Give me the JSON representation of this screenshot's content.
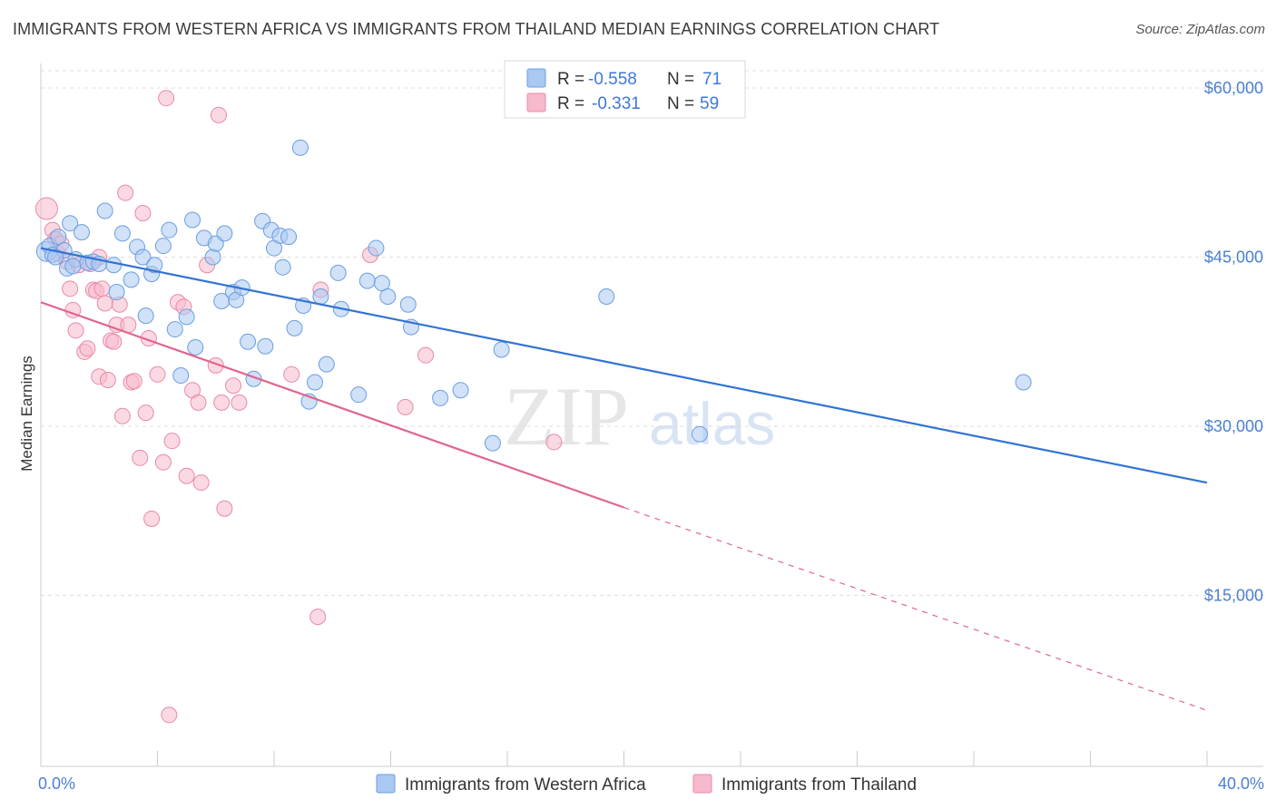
{
  "title": "IMMIGRANTS FROM WESTERN AFRICA VS IMMIGRANTS FROM THAILAND MEDIAN EARNINGS CORRELATION CHART",
  "source": "Source: ZipAtlas.com",
  "watermark": {
    "zip": "ZIP",
    "atlas": "atlas"
  },
  "legend": {
    "rows": [
      {
        "r_label": "R =",
        "r_value": "-0.558",
        "n_label": "N =",
        "n_value": "71",
        "color": "#a9c8f2"
      },
      {
        "r_label": "R =",
        "r_value": "-0.331",
        "n_label": "N =",
        "n_value": "59",
        "color": "#f7b9cc"
      }
    ]
  },
  "colors": {
    "blue_fill": "#a9c8f2",
    "blue_stroke": "#6b9ee0",
    "blue_line": "#3273d1",
    "pink_fill": "#f7b9cc",
    "pink_stroke": "#e88aa6",
    "pink_line": "#e0668e",
    "grid": "#dddddd",
    "tick_label": "#4a7fd4"
  },
  "chart_data": {
    "type": "scatter",
    "title": "IMMIGRANTS FROM WESTERN AFRICA VS IMMIGRANTS FROM THAILAND MEDIAN EARNINGS CORRELATION CHART",
    "xlabel": "",
    "ylabel": "Median Earnings",
    "xlim": [
      0,
      40
    ],
    "ylim": [
      0,
      62000
    ],
    "x_tick_labels": [
      "0.0%",
      "40.0%"
    ],
    "y_ticks": [
      15000,
      30000,
      45000,
      60000
    ],
    "y_tick_labels": [
      "$15,000",
      "$30,000",
      "$45,000",
      "$60,000"
    ],
    "grid": true,
    "legend_position": "top-center",
    "series": [
      {
        "name": "Immigrants from Western Africa",
        "color": "#a9c8f2",
        "trend": {
          "x": [
            0,
            40
          ],
          "y": [
            45800,
            25000
          ],
          "dashed_from": null
        },
        "points": [
          [
            0.2,
            45500
          ],
          [
            0.3,
            46000
          ],
          [
            0.4,
            45200
          ],
          [
            0.6,
            46800
          ],
          [
            0.8,
            45600
          ],
          [
            0.9,
            44000
          ],
          [
            1.0,
            48000
          ],
          [
            1.2,
            44800
          ],
          [
            1.4,
            47200
          ],
          [
            1.6,
            44500
          ],
          [
            1.8,
            44600
          ],
          [
            2.0,
            44400
          ],
          [
            2.2,
            49100
          ],
          [
            2.5,
            44300
          ],
          [
            2.6,
            41900
          ],
          [
            2.8,
            47100
          ],
          [
            3.1,
            43000
          ],
          [
            3.3,
            45900
          ],
          [
            3.5,
            45000
          ],
          [
            3.6,
            39800
          ],
          [
            3.8,
            43500
          ],
          [
            3.9,
            44300
          ],
          [
            4.2,
            46000
          ],
          [
            4.4,
            47400
          ],
          [
            4.6,
            38600
          ],
          [
            4.8,
            34500
          ],
          [
            5.0,
            39700
          ],
          [
            5.2,
            48300
          ],
          [
            5.3,
            37000
          ],
          [
            5.6,
            46700
          ],
          [
            5.9,
            45000
          ],
          [
            6.0,
            46200
          ],
          [
            6.2,
            41100
          ],
          [
            6.3,
            47100
          ],
          [
            6.6,
            41900
          ],
          [
            6.7,
            41200
          ],
          [
            6.9,
            42300
          ],
          [
            7.1,
            37500
          ],
          [
            7.3,
            34200
          ],
          [
            7.6,
            48200
          ],
          [
            7.7,
            37100
          ],
          [
            7.9,
            47400
          ],
          [
            8.0,
            45800
          ],
          [
            8.2,
            46900
          ],
          [
            8.3,
            44100
          ],
          [
            8.5,
            46800
          ],
          [
            8.7,
            38700
          ],
          [
            8.9,
            54700
          ],
          [
            9.0,
            40700
          ],
          [
            9.2,
            32200
          ],
          [
            9.4,
            33900
          ],
          [
            9.6,
            41500
          ],
          [
            9.8,
            35500
          ],
          [
            10.2,
            43600
          ],
          [
            10.3,
            40400
          ],
          [
            10.9,
            32800
          ],
          [
            11.2,
            42900
          ],
          [
            11.5,
            45800
          ],
          [
            11.7,
            42700
          ],
          [
            11.9,
            41500
          ],
          [
            12.6,
            40800
          ],
          [
            12.7,
            38800
          ],
          [
            13.7,
            32500
          ],
          [
            14.4,
            33200
          ],
          [
            15.5,
            28500
          ],
          [
            15.8,
            36800
          ],
          [
            19.4,
            41500
          ],
          [
            22.6,
            29300
          ],
          [
            33.7,
            33900
          ],
          [
            0.5,
            45000
          ],
          [
            1.1,
            44200
          ]
        ]
      },
      {
        "name": "Immigrants from Thailand",
        "color": "#f7b9cc",
        "trend": {
          "x": [
            0,
            20
          ],
          "y": [
            41000,
            22800
          ],
          "dashed_to": [
            40,
            4800
          ]
        },
        "points": [
          [
            0.2,
            49300
          ],
          [
            0.4,
            47400
          ],
          [
            0.5,
            46600
          ],
          [
            0.6,
            45300
          ],
          [
            0.7,
            46200
          ],
          [
            0.9,
            44600
          ],
          [
            1.0,
            42200
          ],
          [
            1.1,
            40300
          ],
          [
            1.2,
            38500
          ],
          [
            1.3,
            44300
          ],
          [
            1.5,
            36600
          ],
          [
            1.6,
            36900
          ],
          [
            1.7,
            44400
          ],
          [
            1.8,
            42100
          ],
          [
            1.9,
            42000
          ],
          [
            2.0,
            34400
          ],
          [
            2.1,
            42200
          ],
          [
            2.2,
            40900
          ],
          [
            2.3,
            34100
          ],
          [
            2.4,
            37600
          ],
          [
            2.5,
            37500
          ],
          [
            2.6,
            39000
          ],
          [
            2.7,
            40800
          ],
          [
            2.8,
            30900
          ],
          [
            2.9,
            50700
          ],
          [
            3.0,
            39000
          ],
          [
            3.1,
            33900
          ],
          [
            3.2,
            34000
          ],
          [
            3.4,
            27200
          ],
          [
            3.5,
            48900
          ],
          [
            3.6,
            31200
          ],
          [
            3.7,
            37800
          ],
          [
            3.8,
            21800
          ],
          [
            4.0,
            34600
          ],
          [
            4.2,
            26800
          ],
          [
            4.3,
            59100
          ],
          [
            4.5,
            28700
          ],
          [
            4.7,
            41000
          ],
          [
            4.9,
            40600
          ],
          [
            5.0,
            25600
          ],
          [
            5.2,
            33200
          ],
          [
            5.4,
            32100
          ],
          [
            5.5,
            25000
          ],
          [
            5.7,
            44300
          ],
          [
            6.0,
            35400
          ],
          [
            6.1,
            57600
          ],
          [
            6.2,
            32100
          ],
          [
            6.3,
            22700
          ],
          [
            6.6,
            33600
          ],
          [
            6.8,
            32100
          ],
          [
            8.6,
            34600
          ],
          [
            9.5,
            13100
          ],
          [
            9.6,
            42100
          ],
          [
            11.3,
            45200
          ],
          [
            12.5,
            31700
          ],
          [
            13.2,
            36300
          ],
          [
            17.6,
            28600
          ],
          [
            4.4,
            4400
          ],
          [
            2.0,
            45000
          ]
        ]
      }
    ]
  },
  "bottom_legend": {
    "items": [
      {
        "label": "Immigrants from Western Africa",
        "color": "#a9c8f2"
      },
      {
        "label": "Immigrants from Thailand",
        "color": "#f7b9cc"
      }
    ]
  }
}
